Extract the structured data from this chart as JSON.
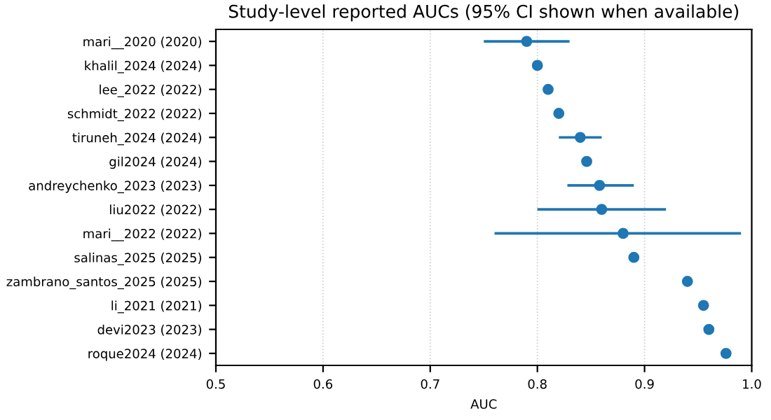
{
  "chart_data": {
    "type": "scatter",
    "orientation": "horizontal",
    "title": "Study-level reported AUCs (95% CI shown when available)",
    "xlabel": "AUC",
    "categories": [
      "mari__2020 (2020)",
      "khalil_2024 (2024)",
      "lee_2022 (2022)",
      "schmidt_2022 (2022)",
      "tiruneh_2024 (2024)",
      "gil2024 (2024)",
      "andreychenko_2023 (2023)",
      "liu2022 (2022)",
      "mari__2022 (2022)",
      "salinas_2025 (2025)",
      "zambrano_santos_2025 (2025)",
      "li_2021 (2021)",
      "devi2023 (2023)",
      "roque2024 (2024)"
    ],
    "values": [
      0.79,
      0.8,
      0.81,
      0.82,
      0.84,
      0.846,
      0.858,
      0.86,
      0.88,
      0.89,
      0.94,
      0.955,
      0.96,
      0.976
    ],
    "errors": [
      [
        0.75,
        0.83
      ],
      null,
      null,
      null,
      [
        0.82,
        0.86
      ],
      null,
      [
        0.828,
        0.89
      ],
      [
        0.8,
        0.92
      ],
      [
        0.76,
        0.99
      ],
      null,
      null,
      null,
      null,
      null
    ],
    "color": "#1f77b4",
    "marker": "circle",
    "xlim": [
      0.5,
      1.0
    ],
    "xticks": [
      0.5,
      0.6,
      0.7,
      0.8,
      0.9,
      {
        "value": 1.0,
        "label": "1.0"
      }
    ],
    "grid": "x"
  }
}
